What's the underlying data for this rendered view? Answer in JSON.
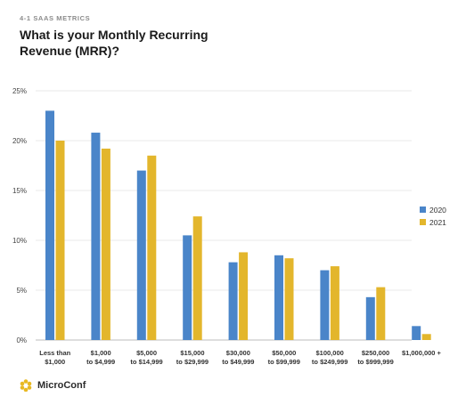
{
  "header": {
    "eyebrow": "4-1 SAAS METRICS",
    "title": "What is your Monthly Recurring Revenue (MRR)?"
  },
  "brand": {
    "name": "MicroConf",
    "icon": "microconf-logo-icon",
    "color": "#e8b923"
  },
  "colors": {
    "series_2020": "#4a85c9",
    "series_2021": "#e3b62c",
    "grid": "#e2e2e2",
    "axis": "#bdbdbd"
  },
  "chart_data": {
    "type": "bar",
    "categories": [
      [
        "Less than",
        "$1,000"
      ],
      [
        "$1,000",
        "to $4,999"
      ],
      [
        "$5,000",
        "to $14,999"
      ],
      [
        "$15,000",
        "to $29,999"
      ],
      [
        "$30,000",
        "to $49,999"
      ],
      [
        "$50,000",
        "to $99,999"
      ],
      [
        "$100,000",
        "to $249,999"
      ],
      [
        "$250,000",
        "to $999,999"
      ],
      [
        "$1,000,000 +"
      ]
    ],
    "series": [
      {
        "name": "2020",
        "values": [
          23,
          20.8,
          17,
          10.5,
          7.8,
          8.5,
          7,
          4.3,
          1.4
        ]
      },
      {
        "name": "2021",
        "values": [
          20,
          19.2,
          18.5,
          12.4,
          8.8,
          8.2,
          7.4,
          5.3,
          0.6
        ]
      }
    ],
    "yticks": [
      "0%",
      "5%",
      "10%",
      "15%",
      "20%",
      "25%"
    ],
    "ylim": [
      0,
      25
    ],
    "grid": true,
    "legend_position": "right"
  }
}
